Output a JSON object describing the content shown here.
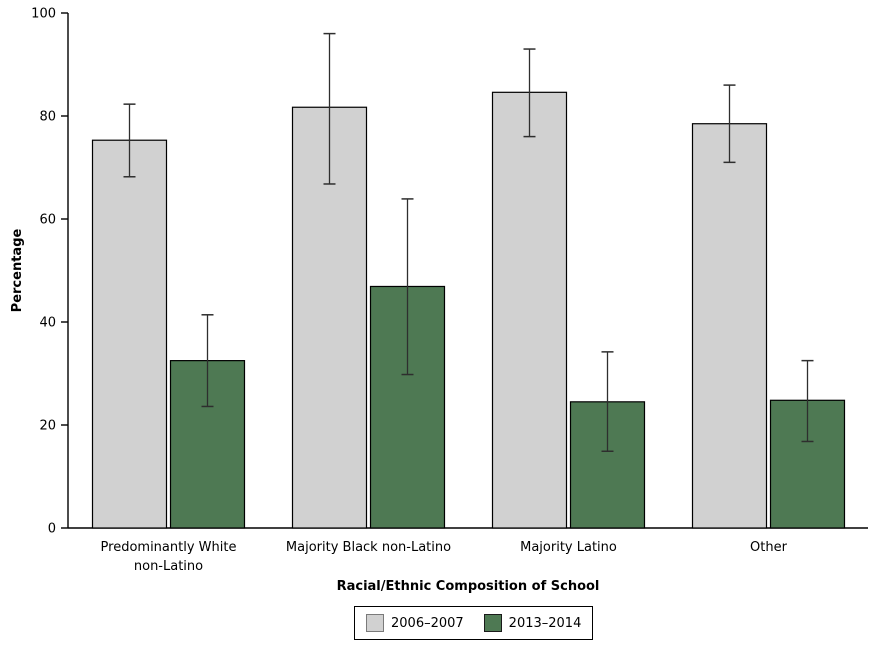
{
  "chart_data": {
    "type": "bar",
    "title": "",
    "xlabel": "Racial/Ethnic Composition of School",
    "ylabel": "Percentage",
    "ylim": [
      0,
      100
    ],
    "yticks": [
      0,
      20,
      40,
      60,
      80,
      100
    ],
    "grid": false,
    "error_bars": true,
    "legend_position": "bottom-center",
    "categories": [
      "Predominantly White non-Latino",
      "Majority Black non-Latino",
      "Majority Latino",
      "Other"
    ],
    "category_label_lines": [
      [
        "Predominantly White",
        "non-Latino"
      ],
      [
        "Majority Black non-Latino"
      ],
      [
        "Majority Latino"
      ],
      [
        "Other"
      ]
    ],
    "series": [
      {
        "name": "2006–2007",
        "color": "#d1d1d1",
        "values": [
          75.3,
          81.7,
          84.6,
          78.5
        ],
        "ci_low": [
          68.2,
          66.8,
          76.0,
          71.0
        ],
        "ci_high": [
          82.3,
          96.0,
          93.0,
          86.0
        ]
      },
      {
        "name": "2013–2014",
        "color": "#4e7953",
        "values": [
          32.5,
          46.9,
          24.5,
          24.8
        ],
        "ci_low": [
          23.6,
          29.8,
          14.9,
          16.8
        ],
        "ci_high": [
          41.4,
          63.9,
          34.2,
          32.5
        ]
      }
    ]
  },
  "colors": {
    "axis": "#000000",
    "bar_border": "#000000",
    "error_bar": "#2e2e2e",
    "background": "#ffffff"
  },
  "legend": {
    "items": [
      {
        "label": "2006–2007",
        "color": "#d1d1d1",
        "border": "#7a7a7a"
      },
      {
        "label": "2013–2014",
        "color": "#4e7953",
        "border": "#1a1a1a"
      }
    ]
  }
}
